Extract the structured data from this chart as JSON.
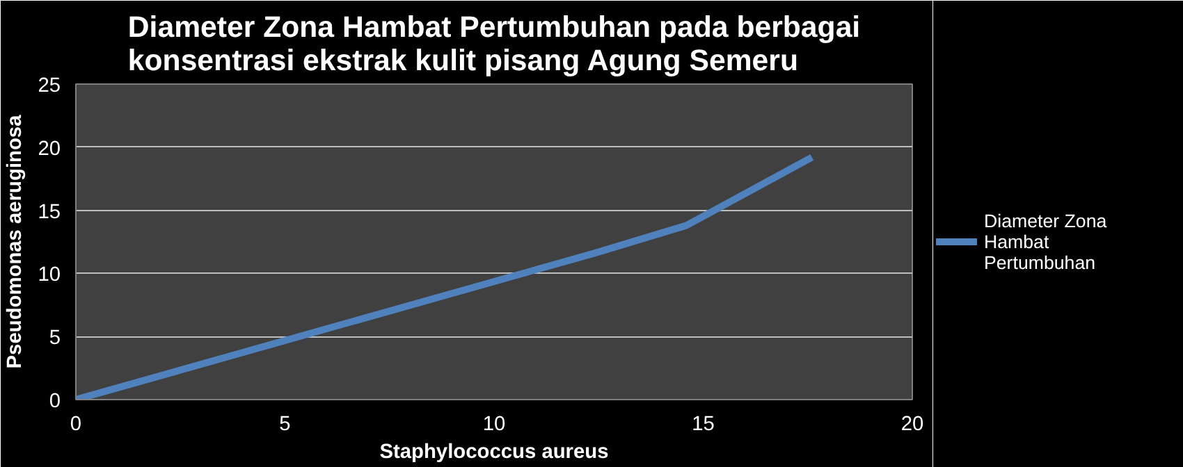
{
  "chart_data": {
    "type": "line",
    "title": "Diameter Zona Hambat Pertumbuhan pada berbagai konsentrasi ekstrak kulit pisang Agung Semeru",
    "xlabel": "Staphylococcus aureus",
    "ylabel": "Pseudomonas aeruginosa",
    "x": [
      0,
      12.4,
      14.6,
      17.6
    ],
    "series": [
      {
        "name": "Diameter Zona Hambat Pertumbuhan",
        "color": "#4f81bd",
        "values": [
          0,
          11.6,
          13.8,
          19.2
        ]
      }
    ],
    "xlim": [
      0,
      20
    ],
    "ylim": [
      0,
      25
    ],
    "xticks": [
      0,
      5,
      10,
      15,
      20
    ],
    "yticks": [
      0,
      5,
      10,
      15,
      20,
      25
    ],
    "grid": "y",
    "legend": "right",
    "marker": "none",
    "line_style": "solid"
  }
}
